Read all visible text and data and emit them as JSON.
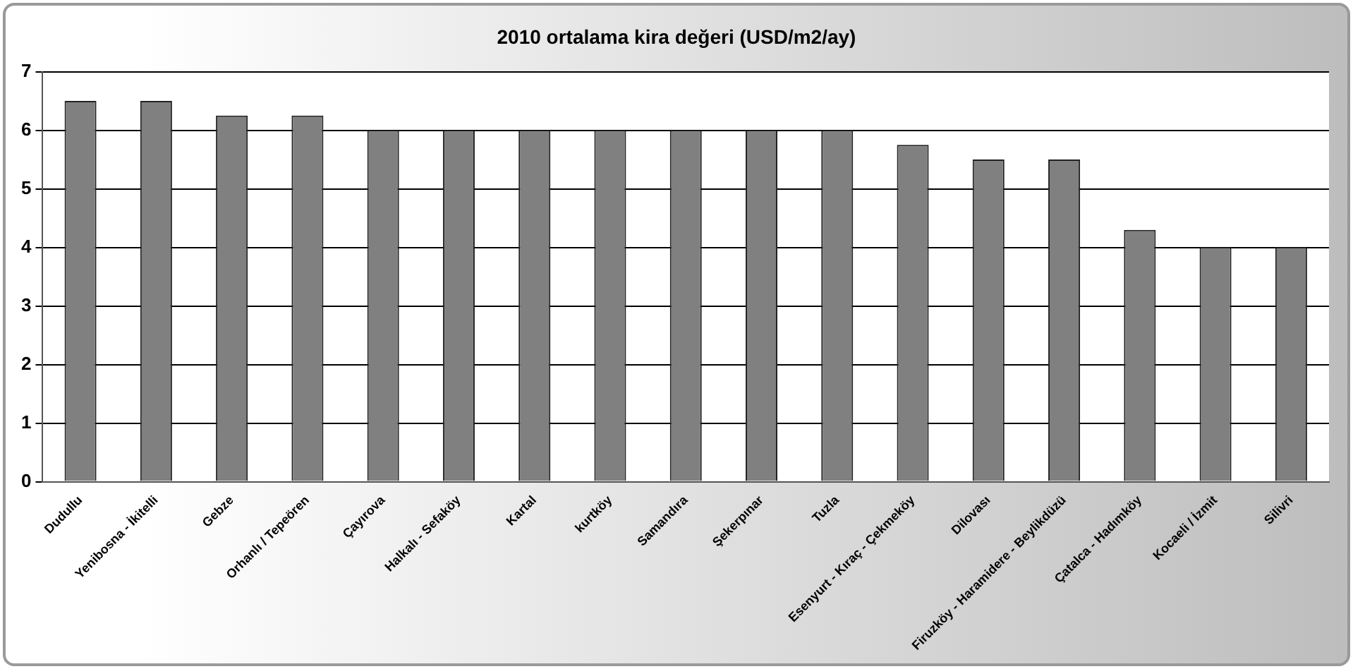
{
  "chart_data": {
    "type": "bar",
    "title": "2010 ortalama kira değeri (USD/m2/ay)",
    "categories": [
      "Dudullu",
      "Yenibosna - İkitelli",
      "Gebze",
      "Orhanlı / Tepeören",
      "Çayırova",
      "Halkalı - Sefaköy",
      "Kartal",
      "kurtköy",
      "Samandıra",
      "Şekerpınar",
      "Tuzla",
      "Esenyurt - Kıraç - Çekmeköy",
      "Dilovası",
      "Firuzköy - Haramidere - Beylikdüzü",
      "Çatalca - Hadımköy",
      "Kocaeli / İzmit",
      "Silivri"
    ],
    "values": [
      6.5,
      6.5,
      6.25,
      6.25,
      6,
      6,
      6,
      6,
      6,
      6,
      6,
      5.75,
      5.5,
      5.5,
      4.3,
      4,
      4
    ],
    "color": "#808080",
    "ylim": [
      0,
      7
    ],
    "yticks": [
      0,
      1,
      2,
      3,
      4,
      5,
      6,
      7
    ],
    "grid": "y",
    "legend": false
  }
}
